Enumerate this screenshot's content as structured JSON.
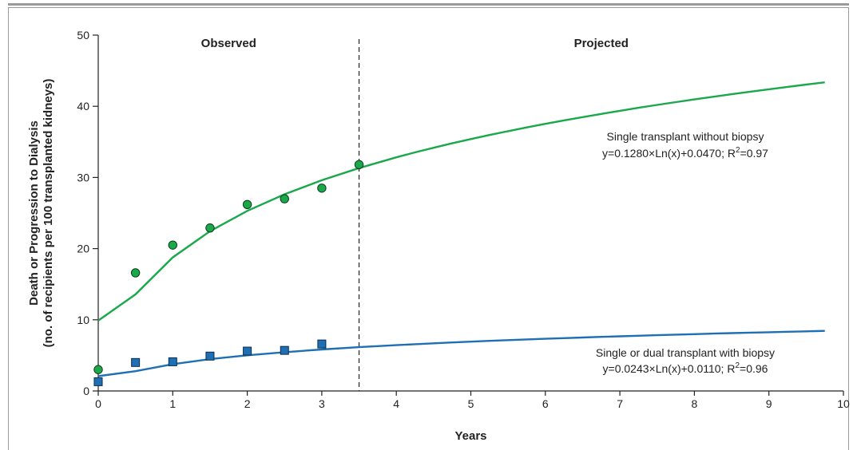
{
  "chart_data": {
    "type": "scatter",
    "xlabel": "Years",
    "ylabel_line1": "Death or Progression to Dialysis",
    "ylabel_line2": "(no. of recipients per 100 transplanted kidneys)",
    "xlim": [
      0,
      10
    ],
    "ylim": [
      0,
      50
    ],
    "x_ticks": [
      0,
      1,
      2,
      3,
      4,
      5,
      6,
      7,
      8,
      9,
      10
    ],
    "y_ticks": [
      0,
      10,
      20,
      30,
      40,
      50
    ],
    "divider_x": 3.5,
    "region_labels": {
      "observed": "Observed",
      "projected": "Projected"
    },
    "series": [
      {
        "name": "Single transplant without biopsy",
        "equation_prefix": "y=0.1280×Ln(x)+0.0470; R",
        "equation_sup": "2",
        "equation_suffix": "=0.97",
        "color": "#1aa84b",
        "marker": "circle",
        "points": [
          {
            "x": 0,
            "y": 3.0
          },
          {
            "x": 0.5,
            "y": 16.6
          },
          {
            "x": 1.0,
            "y": 20.5
          },
          {
            "x": 1.5,
            "y": 22.9
          },
          {
            "x": 2.0,
            "y": 26.2
          },
          {
            "x": 2.5,
            "y": 27.0
          },
          {
            "x": 3.0,
            "y": 28.5
          },
          {
            "x": 3.5,
            "y": 31.8
          }
        ],
        "fit": {
          "a": 12.8,
          "b": 4.7
        }
      },
      {
        "name": "Single or dual transplant with biopsy",
        "equation_prefix": "y=0.0243×Ln(x)+0.0110; R",
        "equation_sup": "2",
        "equation_suffix": "=0.96",
        "color": "#1f6fb4",
        "marker": "square",
        "points": [
          {
            "x": 0,
            "y": 1.3
          },
          {
            "x": 0.5,
            "y": 4.0
          },
          {
            "x": 1.0,
            "y": 4.1
          },
          {
            "x": 1.5,
            "y": 4.9
          },
          {
            "x": 2.0,
            "y": 5.6
          },
          {
            "x": 2.5,
            "y": 5.7
          },
          {
            "x": 3.0,
            "y": 6.6
          }
        ],
        "fit": {
          "a": 2.43,
          "b": 1.1
        }
      }
    ]
  }
}
